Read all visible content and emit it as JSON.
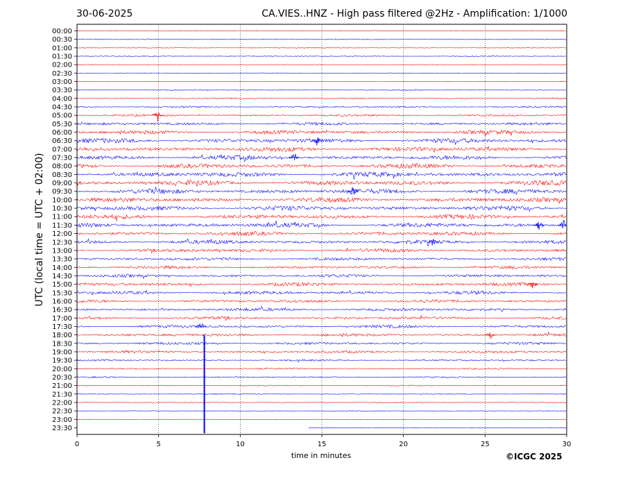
{
  "header": {
    "date": "30-06-2025",
    "title": "CA.VIES..HNZ - High pass filtered @2Hz - Amplification: 1/1000"
  },
  "footer": {
    "copyright": "©ICGC 2025"
  },
  "chart_data": {
    "type": "line",
    "title": "CA.VIES..HNZ - High pass filtered @2Hz - Amplification: 1/1000",
    "xlabel": "time in minutes",
    "ylabel": "UTC (local time = UTC + 02:00)",
    "xlim": [
      0,
      30
    ],
    "x_ticks": [
      "0",
      "5",
      "10",
      "15",
      "20",
      "25",
      "30"
    ],
    "grid": "vertical dotted at 5-minute intervals",
    "colors": {
      "even_rows": "#ff0000",
      "odd_rows": "#0000ff"
    },
    "rows": [
      {
        "label": "00:00",
        "amplitude": 0.1
      },
      {
        "label": "00:30",
        "amplitude": 0.12
      },
      {
        "label": "01:00",
        "amplitude": 0.12
      },
      {
        "label": "01:30",
        "amplitude": 0.14
      },
      {
        "label": "02:00",
        "amplitude": 0.08
      },
      {
        "label": "02:30",
        "amplitude": 0.1
      },
      {
        "label": "03:00",
        "amplitude": 0.08
      },
      {
        "label": "03:30",
        "amplitude": 0.18
      },
      {
        "label": "04:00",
        "amplitude": 0.2
      },
      {
        "label": "04:30",
        "amplitude": 0.25
      },
      {
        "label": "05:00",
        "amplitude": 0.32
      },
      {
        "label": "05:30",
        "amplitude": 0.45
      },
      {
        "label": "06:00",
        "amplitude": 0.6
      },
      {
        "label": "06:30",
        "amplitude": 0.7
      },
      {
        "label": "07:00",
        "amplitude": 0.72
      },
      {
        "label": "07:30",
        "amplitude": 0.68
      },
      {
        "label": "08:00",
        "amplitude": 0.7
      },
      {
        "label": "08:30",
        "amplitude": 0.75
      },
      {
        "label": "09:00",
        "amplitude": 0.75
      },
      {
        "label": "09:30",
        "amplitude": 0.75
      },
      {
        "label": "10:00",
        "amplitude": 0.72
      },
      {
        "label": "10:30",
        "amplitude": 0.72
      },
      {
        "label": "11:00",
        "amplitude": 0.65
      },
      {
        "label": "11:30",
        "amplitude": 0.7
      },
      {
        "label": "12:00",
        "amplitude": 0.6
      },
      {
        "label": "12:30",
        "amplitude": 0.6
      },
      {
        "label": "13:00",
        "amplitude": 0.55
      },
      {
        "label": "13:30",
        "amplitude": 0.45
      },
      {
        "label": "14:00",
        "amplitude": 0.45
      },
      {
        "label": "14:30",
        "amplitude": 0.45
      },
      {
        "label": "15:00",
        "amplitude": 0.55
      },
      {
        "label": "15:30",
        "amplitude": 0.5
      },
      {
        "label": "16:00",
        "amplitude": 0.45
      },
      {
        "label": "16:30",
        "amplitude": 0.5
      },
      {
        "label": "17:00",
        "amplitude": 0.45
      },
      {
        "label": "17:30",
        "amplitude": 0.45
      },
      {
        "label": "18:00",
        "amplitude": 0.45
      },
      {
        "label": "18:30",
        "amplitude": 0.4
      },
      {
        "label": "19:00",
        "amplitude": 0.4
      },
      {
        "label": "19:30",
        "amplitude": 0.25
      },
      {
        "label": "20:00",
        "amplitude": 0.25
      },
      {
        "label": "20:30",
        "amplitude": 0.2
      },
      {
        "label": "21:00",
        "amplitude": 0.15
      },
      {
        "label": "21:30",
        "amplitude": 0.15
      },
      {
        "label": "22:00",
        "amplitude": 0.12
      },
      {
        "label": "22:30",
        "amplitude": 0.1
      },
      {
        "label": "23:00",
        "amplitude": 0.08
      },
      {
        "label": "23:30",
        "amplitude": 0.08
      }
    ],
    "events": [
      {
        "row": "05:00",
        "minute": 4.95,
        "amplitude": 1.6
      },
      {
        "row": "06:30",
        "minute": 14.7,
        "amplitude": 1.3
      },
      {
        "row": "07:30",
        "minute": 13.3,
        "amplitude": 1.4
      },
      {
        "row": "09:30",
        "minute": 16.9,
        "amplitude": 1.5
      },
      {
        "row": "11:30",
        "minute": 28.3,
        "amplitude": 1.6
      },
      {
        "row": "11:30",
        "minute": 29.8,
        "amplitude": 1.6
      },
      {
        "row": "12:30",
        "minute": 21.8,
        "amplitude": 1.4
      },
      {
        "row": "15:00",
        "minute": 27.9,
        "amplitude": 1.2
      },
      {
        "row": "17:30",
        "minute": 7.6,
        "amplitude": 1.4
      },
      {
        "row": "18:00",
        "minute": 25.3,
        "amplitude": 1.2
      }
    ],
    "spike": {
      "minute": 7.8,
      "from_row": "18:00",
      "to_row": "23:30",
      "color": "#0000ff"
    },
    "last_row_trace_start": 14.2
  }
}
